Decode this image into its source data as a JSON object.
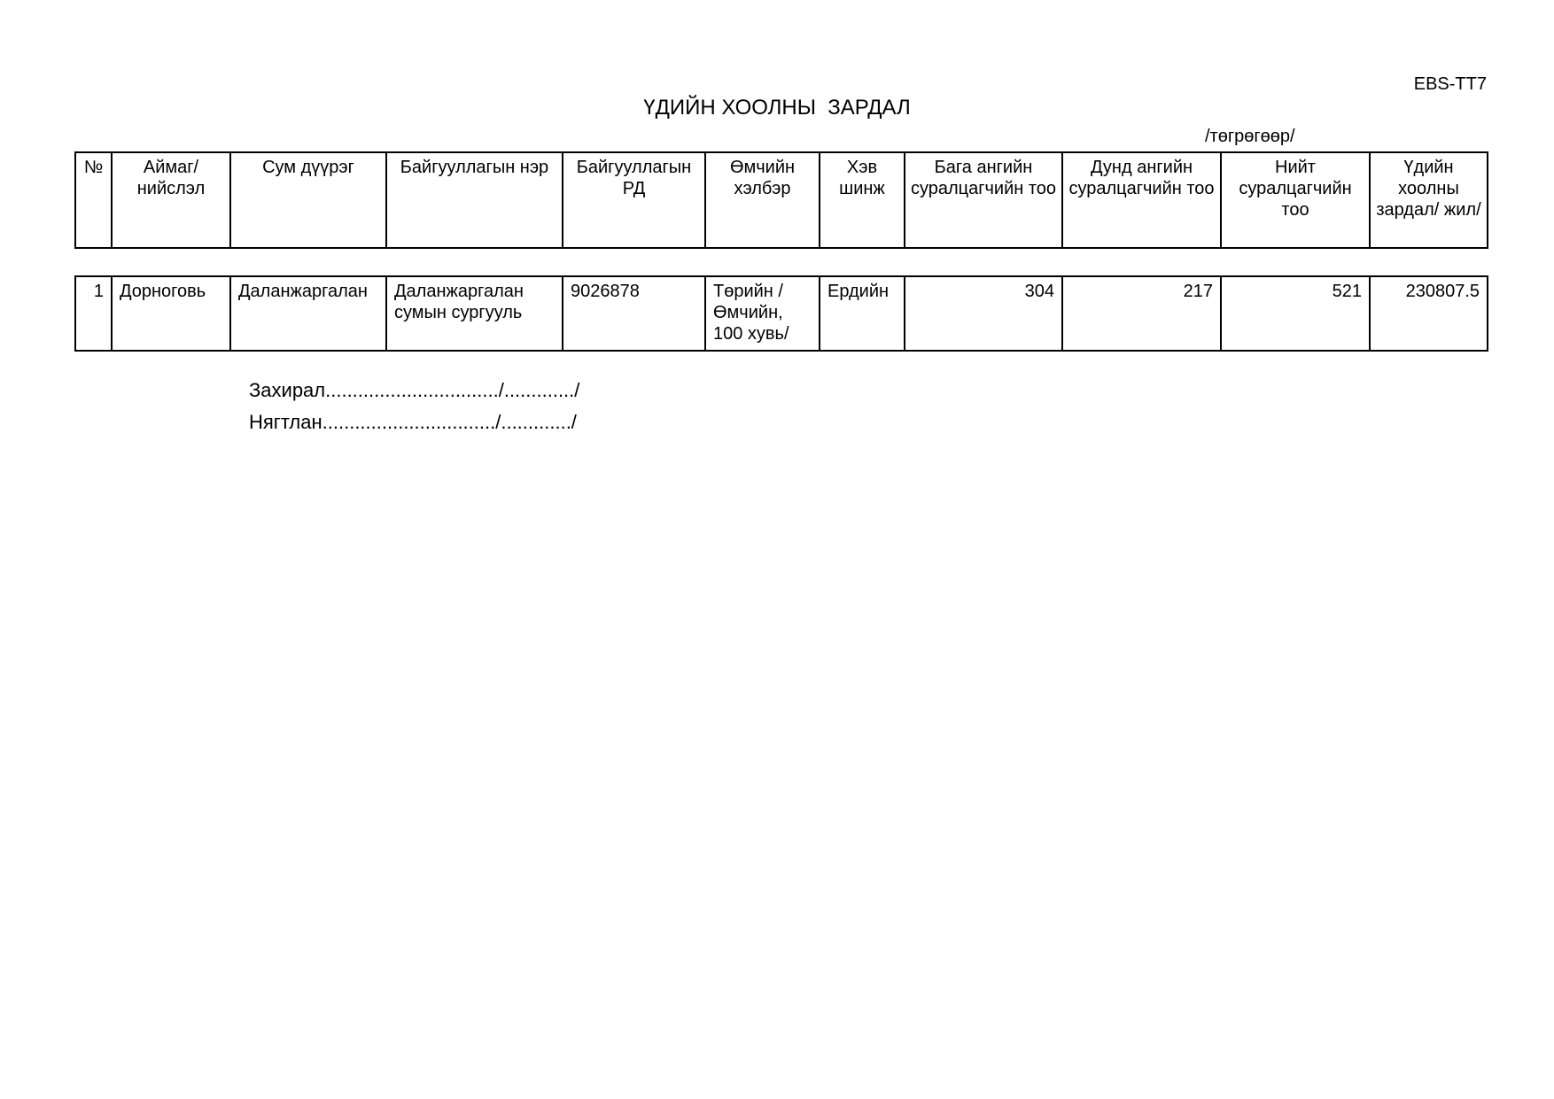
{
  "form_code": "EBS-TT7",
  "title": "ҮДИЙН ХООЛНЫ  ЗАРДАЛ",
  "unit": "/төгрөгөөр/",
  "columns": [
    "№",
    "Аймаг/ нийслэл",
    "Сум дүүрэг",
    "Байгууллагын нэр",
    "Байгууллагын РД",
    "Өмчийн хэлбэр",
    "Хэв шинж",
    "Бага ангийн суралцагчийн тоо",
    "Дунд ангийн суралцагчийн тоо",
    "Нийт суралцагчийн тоо",
    "Үдийн хоолны зардал/ жил/"
  ],
  "rows": [
    [
      "1",
      "Дорноговь",
      "Даланжаргалан",
      "Даланжаргалан сумын сургууль",
      "9026878",
      "Төрийн / Өмчийн, 100 хувь/",
      "Ердийн",
      "304",
      "217",
      "521",
      "230807.5"
    ]
  ],
  "signatures": {
    "director": "Захирал................................/............./",
    "accountant": "Нягтлан................................/............./"
  }
}
